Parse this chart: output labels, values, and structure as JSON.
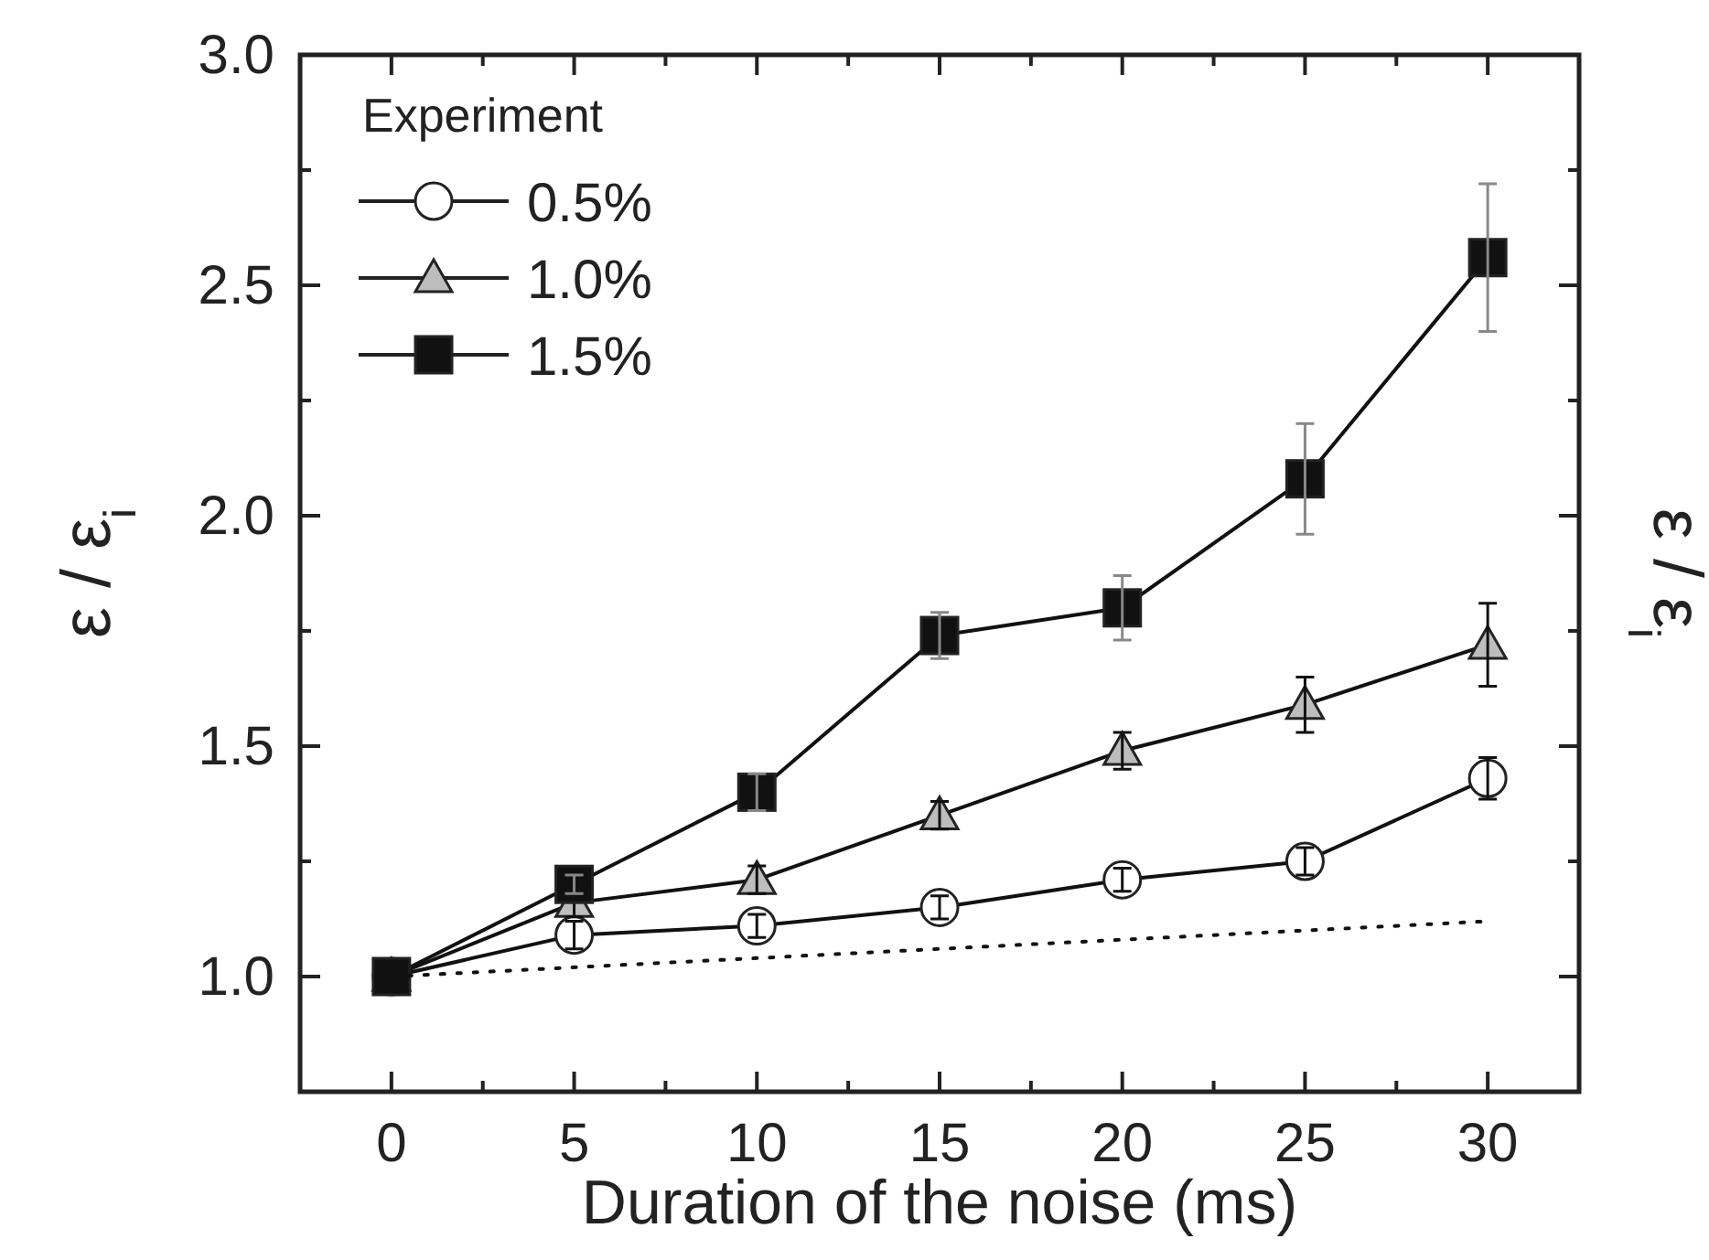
{
  "chart_data": {
    "type": "line",
    "xlabel": "Duration of the noise (ms)",
    "ylabel": "ε / ε$_{i}$",
    "y2label": "ε / ε$_{i}$",
    "legend_title": "Experiment",
    "legend": "top left",
    "grid": false,
    "x": [
      0,
      5,
      10,
      15,
      20,
      25,
      30
    ],
    "xlim": [
      -2.5,
      32.5
    ],
    "ylim": [
      0.75,
      3.0
    ],
    "xticks": [
      0,
      {
        "value": 2.5,
        "label": null
      },
      5,
      {
        "value": 7.5,
        "label": null
      },
      10,
      {
        "value": 12.5,
        "label": null
      },
      15,
      {
        "value": 17.5,
        "label": null
      },
      20,
      {
        "value": 22.5,
        "label": null
      },
      25,
      {
        "value": 27.5,
        "label": null
      },
      30
    ],
    "yticks": [
      {
        "value": 1,
        "label": "1.0"
      },
      {
        "value": 1.25,
        "label": null
      },
      1.5,
      {
        "value": 1.75,
        "label": null
      },
      {
        "value": 2,
        "label": "2.0"
      },
      {
        "value": 2.25,
        "label": null
      },
      2.5,
      {
        "value": 2.75,
        "label": null
      },
      {
        "value": 3,
        "label": "3.0"
      }
    ],
    "series": [
      {
        "name": "0.5%",
        "color": "#ffffff",
        "marker": "circle",
        "values": [
          1.0,
          1.09,
          1.11,
          1.15,
          1.21,
          1.25,
          1.43
        ],
        "errors": [
          null,
          0.03,
          0.025,
          0.025,
          0.025,
          0.03,
          0.045
        ]
      },
      {
        "name": "1.0%",
        "color": "#bdbdbd",
        "marker": "triangle",
        "values": [
          1.0,
          1.16,
          1.21,
          1.35,
          1.49,
          1.59,
          1.72
        ],
        "errors": [
          null,
          0.03,
          0.03,
          0.03,
          0.04,
          0.06,
          0.09
        ]
      },
      {
        "name": "1.5%",
        "color": "#111111",
        "marker": "square",
        "values": [
          1.0,
          1.2,
          1.4,
          1.74,
          1.8,
          2.08,
          2.56
        ],
        "errors": [
          null,
          0.02,
          0.04,
          0.05,
          0.07,
          0.12,
          0.16
        ]
      },
      {
        "color": "#111111",
        "marker": "none",
        "line_style": "dotted",
        "x": [
          0,
          30
        ],
        "values": [
          1.0,
          1.12
        ]
      }
    ]
  }
}
